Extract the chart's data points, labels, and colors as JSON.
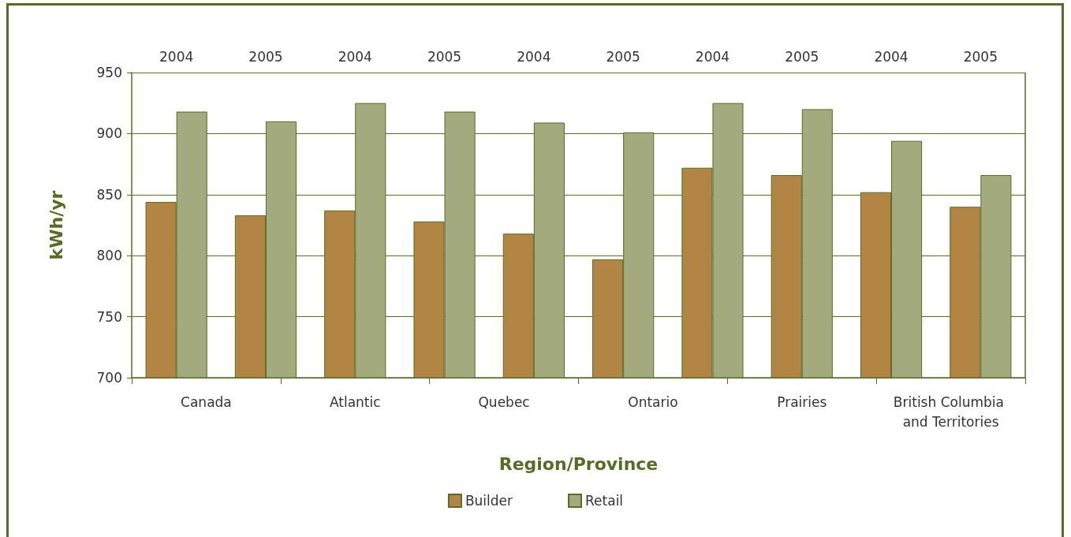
{
  "chart_data": {
    "type": "bar",
    "xlabel": "Region/Province",
    "ylabel": "kWh/yr",
    "categories": [
      "2004",
      "2005",
      "2004",
      "2005",
      "2004",
      "2005",
      "2004",
      "2005",
      "2004",
      "2005"
    ],
    "series": [
      {
        "name": "Builder",
        "color": "#b38544",
        "values": [
          844,
          833,
          837,
          828,
          818,
          797,
          872,
          866,
          852,
          840
        ]
      },
      {
        "name": "Retail",
        "color": "#a2aa7e",
        "values": [
          918,
          910,
          925,
          918,
          909,
          901,
          925,
          920,
          894,
          866
        ]
      }
    ],
    "annotations": [
      "Canada",
      "Atlantic",
      "Quebec",
      "Ontario",
      "Prairies",
      "British Columbia and Territories"
    ],
    "ylim": [
      700,
      950
    ],
    "yticks": [
      700,
      750,
      800,
      850,
      900,
      950
    ],
    "grid": "y",
    "legend": "bottom"
  }
}
